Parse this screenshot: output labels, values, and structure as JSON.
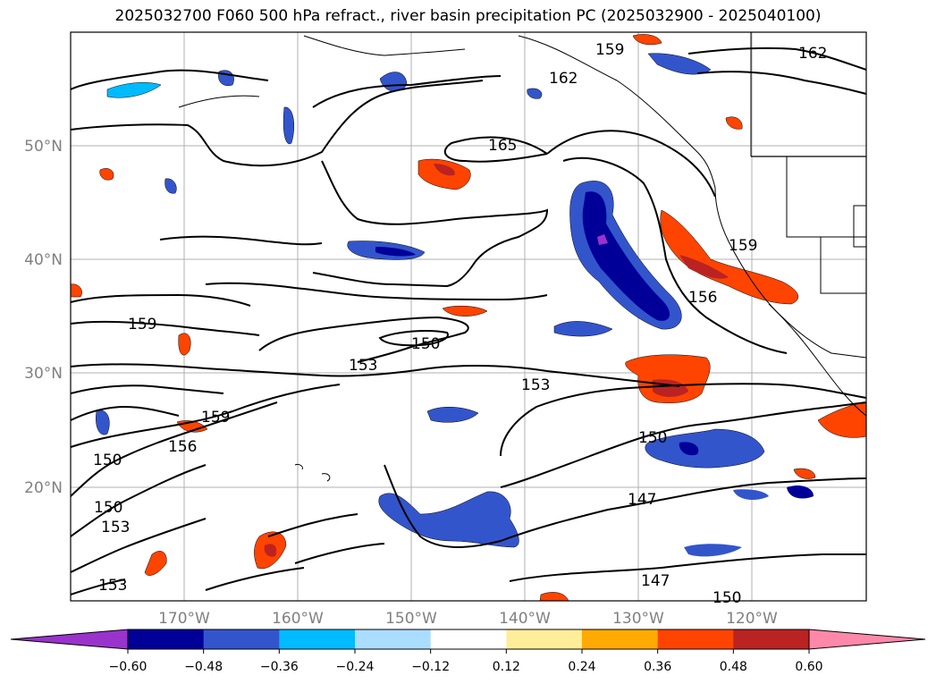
{
  "title": "2025032700 F060 500 hPa refract., river basin precipitation PC (2025032900 - 2025040100)",
  "map": {
    "latitude_labels": [
      "50°N",
      "40°N",
      "30°N",
      "20°N"
    ],
    "longitude_labels": [
      "170°W",
      "160°W",
      "150°W",
      "140°W",
      "130°W",
      "120°W"
    ],
    "contour_labels": [
      "159",
      "162",
      "162",
      "165",
      "159",
      "159",
      "156",
      "150",
      "153",
      "153",
      "159",
      "156",
      "150",
      "150",
      "153",
      "150",
      "147",
      "147",
      "150",
      "153"
    ]
  },
  "colorbar": {
    "tick_labels": [
      "−0.60",
      "−0.48",
      "−0.36",
      "−0.24",
      "−0.12",
      "0.12",
      "0.24",
      "0.36",
      "0.48",
      "0.60"
    ],
    "colors": [
      "#9933cc",
      "#000099",
      "#3355cc",
      "#00bbff",
      "#aaddff",
      "#ffffff",
      "#ffee99",
      "#ffaa00",
      "#ff4400",
      "#bb2222",
      "#ff88aa"
    ]
  }
}
